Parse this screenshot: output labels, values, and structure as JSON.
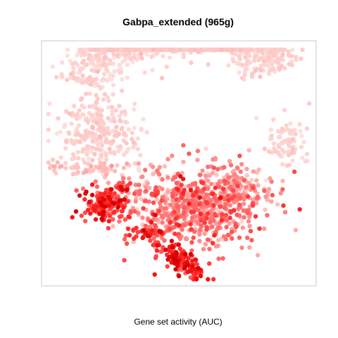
{
  "chart_data": {
    "type": "scatter",
    "title": "Gabpa_extended (965g)",
    "xlabel": "Gene set activity (AUC)",
    "ylabel": "",
    "axes_visible": false,
    "grid": false,
    "legend": "none",
    "color_scale": {
      "low": "#fde0dd",
      "high": "#ff0000"
    },
    "xlim": [
      0,
      100
    ],
    "ylim": [
      0,
      100
    ],
    "point_cloud_approximation": true,
    "clusters": [
      {
        "name": "upper-arc-band",
        "shape": "arc",
        "arc_center": [
          52,
          25
        ],
        "arc_radius": [
          40,
          34
        ],
        "arc_thickness": 14,
        "angle_from": 195,
        "angle_to": 335,
        "n": 820,
        "auc_mean": 0.05,
        "auc_spread": 0.04
      },
      {
        "name": "upper-left-mass",
        "center": [
          20,
          37
        ],
        "spread": [
          8,
          7
        ],
        "n": 260,
        "auc_mean": 0.06,
        "auc_spread": 0.04
      },
      {
        "name": "right-tail",
        "center": [
          91,
          42
        ],
        "spread": [
          4,
          6
        ],
        "n": 70,
        "auc_mean": 0.05,
        "auc_spread": 0.03
      },
      {
        "name": "left-lower-band",
        "center": [
          17,
          52
        ],
        "spread": [
          9,
          1.6
        ],
        "n": 60,
        "auc_mean": 0.12,
        "auc_spread": 0.07
      },
      {
        "name": "central-mass",
        "center": [
          56,
          68
        ],
        "spread": [
          13,
          8
        ],
        "n": 700,
        "auc_mean": 0.42,
        "auc_spread": 0.22
      },
      {
        "name": "central-right-lobe",
        "center": [
          72,
          60
        ],
        "spread": [
          5,
          5
        ],
        "n": 110,
        "auc_mean": 0.3,
        "auc_spread": 0.15
      },
      {
        "name": "left-cluster",
        "center": [
          22,
          67
        ],
        "spread": [
          4,
          3.5
        ],
        "n": 150,
        "auc_mean": 0.72,
        "auc_spread": 0.18
      },
      {
        "name": "small-left-group",
        "center": [
          29,
          60
        ],
        "spread": [
          1.5,
          1.2
        ],
        "n": 20,
        "auc_mean": 0.7,
        "auc_spread": 0.15
      },
      {
        "name": "lower-small-group",
        "center": [
          39,
          79
        ],
        "spread": [
          3,
          1.2
        ],
        "n": 40,
        "auc_mean": 0.75,
        "auc_spread": 0.15
      },
      {
        "name": "bottom-streak",
        "center": [
          51,
          91
        ],
        "spread": [
          4,
          2.6
        ],
        "n": 150,
        "auc_mean": 0.78,
        "auc_spread": 0.18,
        "tilt": 0.65
      }
    ]
  }
}
